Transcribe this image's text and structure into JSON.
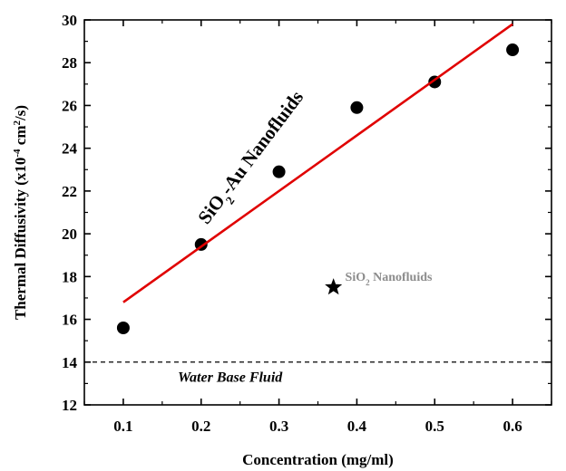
{
  "chart_data": {
    "type": "scatter",
    "xlabel": "Concentration (mg/ml)",
    "ylabel": {
      "main": "Thermal Diffusivity (x10",
      "exp1": "-4",
      "mid": " cm",
      "exp2": "2",
      "end": "/s)"
    },
    "xlim": [
      0.05,
      0.65
    ],
    "ylim": [
      12,
      30
    ],
    "xticks": [
      "0.1",
      "0.2",
      "0.3",
      "0.4",
      "0.5",
      "0.6"
    ],
    "yticks": [
      "12",
      "14",
      "16",
      "18",
      "20",
      "22",
      "24",
      "26",
      "28",
      "30"
    ],
    "series": [
      {
        "kind": "points",
        "marker": "circle",
        "color": "#000000",
        "x": [
          0.1,
          0.2,
          0.3,
          0.4,
          0.5,
          0.6
        ],
        "y": [
          15.6,
          19.5,
          22.9,
          25.9,
          27.1,
          28.6
        ]
      },
      {
        "kind": "fit-line",
        "color": "#e00000",
        "x": [
          0.1,
          0.6
        ],
        "y": [
          16.8,
          29.8
        ]
      },
      {
        "kind": "point",
        "marker": "star",
        "color": "#000000",
        "x": [
          0.37
        ],
        "y": [
          17.5
        ]
      },
      {
        "kind": "reference-line",
        "style": "dashed",
        "color": "#000000",
        "y": 14
      }
    ],
    "annotations": {
      "sio2_au": {
        "pre": "SiO",
        "sub": "2",
        "post": "-Au Nanofluids",
        "x": 0.27,
        "y": 23.4,
        "angle": -53
      },
      "sio2": {
        "pre": "SiO",
        "sub": "2",
        "post": " Nanofluids",
        "x": 0.385,
        "y": 17.8,
        "color": "#8c8c8c"
      },
      "water": {
        "text": "Water Base Fluid",
        "x": 0.17,
        "y": 13.2
      }
    },
    "grid": false,
    "legend": "none"
  }
}
